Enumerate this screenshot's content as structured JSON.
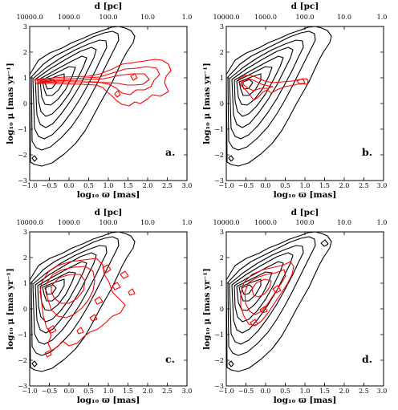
{
  "chart_data": [
    {
      "type": "contour",
      "panel_label": "a.",
      "xlabel": "log₁₀ ϖ [mas]",
      "ylabel": "log₁₀ μ [mas yr⁻¹]",
      "top_xlabel": "d [pc]",
      "xlim": [
        -1.0,
        3.0
      ],
      "ylim": [
        -3,
        3
      ],
      "xticks": [
        "−1.0",
        "−0.5",
        "0.0",
        "0.5",
        "1.0",
        "1.5",
        "2.0",
        "2.5",
        "3.0"
      ],
      "yticks": [
        "−3",
        "−2",
        "−1",
        "0",
        "1",
        "2",
        "3"
      ],
      "top_ticks": [
        "10000.0",
        "1000.0",
        "100.0",
        "10.0",
        "1.0"
      ],
      "series": [
        {
          "color": "#000000",
          "points": [
            [
              -0.9,
              -2.2
            ],
            [
              0.0,
              -1.2
            ],
            [
              0.6,
              0.2
            ],
            [
              1.2,
              1.8
            ],
            [
              1.8,
              2.9
            ]
          ]
        },
        {
          "color": "#ff0000",
          "points": [
            [
              -0.8,
              0.7
            ],
            [
              0.5,
              0.75
            ],
            [
              1.4,
              0.9
            ],
            [
              2.3,
              1.2
            ],
            [
              2.6,
              1.5
            ]
          ]
        }
      ]
    },
    {
      "type": "contour",
      "panel_label": "b.",
      "xlabel": "log₁₀ ϖ [mas]",
      "ylabel": "log₁₀ μ [mas yr⁻¹]",
      "top_xlabel": "d [pc]",
      "xlim": [
        -1.0,
        3.0
      ],
      "ylim": [
        -3,
        3
      ],
      "xticks": [
        "−1.0",
        "−0.5",
        "0.0",
        "0.5",
        "1.0",
        "1.5",
        "2.0",
        "2.5",
        "3.0"
      ],
      "yticks": [
        "−3",
        "−2",
        "−1",
        "0",
        "1",
        "2",
        "3"
      ],
      "top_ticks": [
        "10000.0",
        "1000.0",
        "100.0",
        "10.0",
        "1.0"
      ],
      "series": [
        {
          "color": "#000000",
          "points": [
            [
              -0.9,
              -2.2
            ],
            [
              0.0,
              -1.2
            ],
            [
              0.6,
              0.2
            ],
            [
              1.2,
              1.8
            ],
            [
              1.8,
              2.9
            ]
          ]
        },
        {
          "color": "#ff0000",
          "points": [
            [
              -0.6,
              0.8
            ],
            [
              -0.2,
              0.5
            ],
            [
              0.3,
              0.5
            ],
            [
              0.8,
              0.7
            ],
            [
              1.2,
              0.75
            ]
          ]
        }
      ]
    },
    {
      "type": "contour",
      "panel_label": "c.",
      "xlabel": "log₁₀ ϖ [mas]",
      "ylabel": "log₁₀ μ [mas yr⁻¹]",
      "top_xlabel": "d [pc]",
      "xlim": [
        -1.0,
        3.0
      ],
      "ylim": [
        -3,
        3
      ],
      "xticks": [
        "−1.0",
        "−0.5",
        "0.0",
        "0.5",
        "1.0",
        "1.5",
        "2.0",
        "2.5",
        "3.0"
      ],
      "yticks": [
        "−3",
        "−2",
        "−1",
        "0",
        "1",
        "2",
        "3"
      ],
      "top_ticks": [
        "10000.0",
        "1000.0",
        "100.0",
        "10.0",
        "1.0"
      ],
      "series": [
        {
          "color": "#000000",
          "points": [
            [
              -0.9,
              -2.2
            ],
            [
              0.0,
              -1.2
            ],
            [
              0.6,
              0.2
            ],
            [
              1.2,
              1.8
            ],
            [
              1.8,
              2.9
            ]
          ]
        },
        {
          "color": "#ff0000",
          "points": [
            [
              -0.6,
              0.7
            ],
            [
              -0.1,
              1.0
            ],
            [
              0.5,
              1.3
            ],
            [
              0.9,
              0.4
            ],
            [
              1.0,
              -0.3
            ],
            [
              0.4,
              -1.0
            ],
            [
              -0.1,
              -1.6
            ]
          ]
        }
      ]
    },
    {
      "type": "contour",
      "panel_label": "d.",
      "xlabel": "log₁₀ ϖ [mas]",
      "ylabel": "log₁₀ μ [mas yr⁻¹]",
      "top_xlabel": "d [pc]",
      "xlim": [
        -1.0,
        3.0
      ],
      "ylim": [
        -3,
        3
      ],
      "xticks": [
        "−1.0",
        "−0.5",
        "0.0",
        "0.5",
        "1.0",
        "1.5",
        "2.0",
        "2.5",
        "3.0"
      ],
      "yticks": [
        "−3",
        "−2",
        "−1",
        "0",
        "1",
        "2",
        "3"
      ],
      "top_ticks": [
        "10000.0",
        "1000.0",
        "100.0",
        "10.0",
        "1.0"
      ],
      "series": [
        {
          "color": "#000000",
          "points": [
            [
              -0.9,
              -2.2
            ],
            [
              0.0,
              -1.2
            ],
            [
              0.6,
              0.2
            ],
            [
              1.2,
              1.8
            ],
            [
              1.8,
              2.9
            ]
          ]
        },
        {
          "color": "#ff0000",
          "points": [
            [
              -0.5,
              1.0
            ],
            [
              0.1,
              1.2
            ],
            [
              0.5,
              1.4
            ],
            [
              0.8,
              1.7
            ],
            [
              0.5,
              0.2
            ],
            [
              0.0,
              -0.6
            ],
            [
              -0.4,
              0.0
            ]
          ]
        }
      ]
    }
  ]
}
